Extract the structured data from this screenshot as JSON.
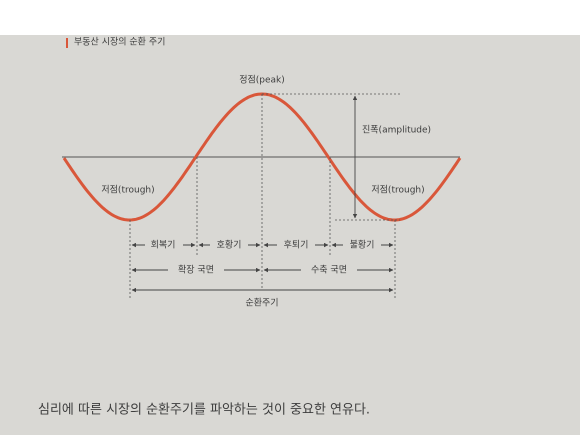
{
  "header": {
    "title": "부동산 시장의 순환 주기"
  },
  "diagram": {
    "peak": "정점(peak)",
    "amplitude": "진폭(amplitude)",
    "trough_left": "저점(trough)",
    "trough_right": "저점(trough)",
    "phases": [
      "회복기",
      "호황기",
      "후퇴기",
      "불황기"
    ],
    "stages": [
      "확장 국면",
      "수축 국면"
    ],
    "cycle": "순환주기"
  },
  "body": {
    "text": "심리에 따른 시장의 순환주기를 파악하는 것이 중요한 연유다."
  }
}
